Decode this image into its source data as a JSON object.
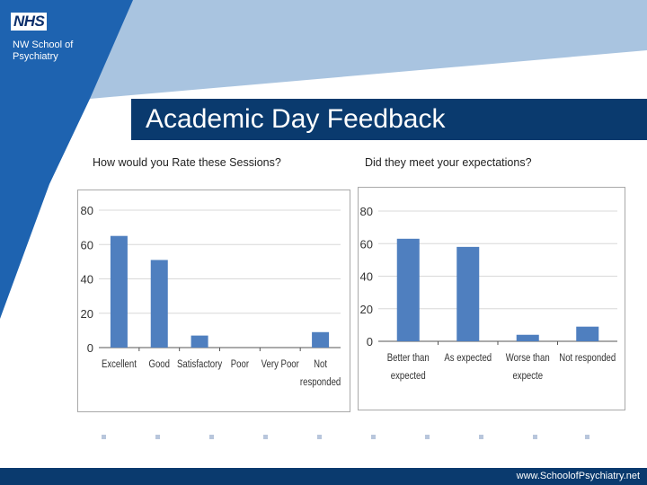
{
  "header": {
    "logo_text": "NHS",
    "org_name": "NW School of Psychiatry",
    "title": "Academic Day Feedback"
  },
  "footer": {
    "url": "www.SchoolofPsychiatry.net"
  },
  "colors": {
    "bar": "#4f7fbf",
    "navy": "#0a3a6e",
    "light_blue": "#a9c4e0",
    "mid_blue": "#1e63b0"
  },
  "chart_data": [
    {
      "type": "bar",
      "title": "How would you Rate these Sessions?",
      "categories": [
        [
          "Excellent"
        ],
        [
          "Good"
        ],
        [
          "Satisfactory"
        ],
        [
          "Poor"
        ],
        [
          "Very Poor"
        ],
        [
          "Not",
          "responded"
        ]
      ],
      "values": [
        65,
        51,
        7,
        0,
        0,
        9
      ],
      "yticks": [
        0,
        20,
        40,
        60,
        80
      ],
      "ylim": [
        0,
        80
      ],
      "grid": true
    },
    {
      "type": "bar",
      "title": "Did they meet your expectations?",
      "categories": [
        [
          "Better than",
          "expected"
        ],
        [
          "As expected"
        ],
        [
          "Worse than",
          "expecte"
        ],
        [
          "Not responded"
        ]
      ],
      "values": [
        63,
        58,
        4,
        9
      ],
      "yticks": [
        0,
        20,
        40,
        60,
        80
      ],
      "ylim": [
        0,
        80
      ],
      "grid": true
    }
  ]
}
